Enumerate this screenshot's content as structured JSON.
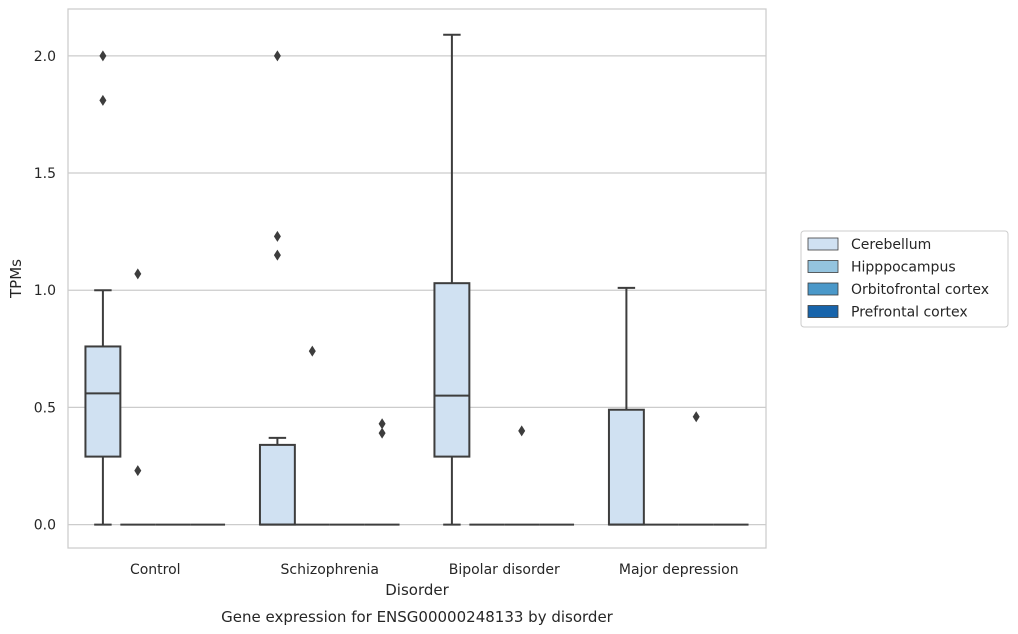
{
  "chart_data": {
    "type": "box",
    "title": "Gene expression for ENSG00000248133 by disorder",
    "xlabel": "Disorder",
    "ylabel": "TPMs",
    "ylim": [
      -0.1,
      2.2
    ],
    "yticks": [
      "0.0",
      "0.5",
      "1.0",
      "1.5",
      "2.0"
    ],
    "grid": "y",
    "legend_position": "right",
    "categories": [
      "Control",
      "Schizophrenia",
      "Bipolar disorder",
      "Major depression"
    ],
    "series": [
      {
        "name": "Cerebellum",
        "color": "#d0e1f2",
        "boxes": [
          {
            "q1": 0.29,
            "median": 0.56,
            "q3": 0.76,
            "whisker_low": 0.0,
            "whisker_high": 1.0,
            "outliers": [
              1.81,
              2.0
            ]
          },
          {
            "q1": 0.0,
            "median": 0.0,
            "q3": 0.34,
            "whisker_low": 0.0,
            "whisker_high": 0.37,
            "outliers": [
              1.15,
              1.23,
              2.0
            ]
          },
          {
            "q1": 0.29,
            "median": 0.55,
            "q3": 1.03,
            "whisker_low": 0.0,
            "whisker_high": 2.09,
            "outliers": []
          },
          {
            "q1": 0.0,
            "median": 0.0,
            "q3": 0.49,
            "whisker_low": 0.0,
            "whisker_high": 1.01,
            "outliers": []
          }
        ]
      },
      {
        "name": "Hipppocampus",
        "color": "#94c4df",
        "boxes": [
          {
            "q1": 0.0,
            "median": 0.0,
            "q3": 0.0,
            "whisker_low": 0.0,
            "whisker_high": 0.0,
            "outliers": [
              0.23,
              1.07
            ]
          },
          {
            "q1": 0.0,
            "median": 0.0,
            "q3": 0.0,
            "whisker_low": 0.0,
            "whisker_high": 0.0,
            "outliers": [
              0.74
            ]
          },
          {
            "q1": 0.0,
            "median": 0.0,
            "q3": 0.0,
            "whisker_low": 0.0,
            "whisker_high": 0.0,
            "outliers": []
          },
          {
            "q1": 0.0,
            "median": 0.0,
            "q3": 0.0,
            "whisker_low": 0.0,
            "whisker_high": 0.0,
            "outliers": []
          }
        ]
      },
      {
        "name": "Orbitofrontal cortex",
        "color": "#4a98c9",
        "boxes": [
          {
            "q1": 0.0,
            "median": 0.0,
            "q3": 0.0,
            "whisker_low": 0.0,
            "whisker_high": 0.0,
            "outliers": []
          },
          {
            "q1": 0.0,
            "median": 0.0,
            "q3": 0.0,
            "whisker_low": 0.0,
            "whisker_high": 0.0,
            "outliers": []
          },
          {
            "q1": 0.0,
            "median": 0.0,
            "q3": 0.0,
            "whisker_low": 0.0,
            "whisker_high": 0.0,
            "outliers": [
              0.4
            ]
          },
          {
            "q1": 0.0,
            "median": 0.0,
            "q3": 0.0,
            "whisker_low": 0.0,
            "whisker_high": 0.0,
            "outliers": [
              0.46
            ]
          }
        ]
      },
      {
        "name": "Prefrontal cortex",
        "color": "#1764ab",
        "boxes": [
          {
            "q1": 0.0,
            "median": 0.0,
            "q3": 0.0,
            "whisker_low": 0.0,
            "whisker_high": 0.0,
            "outliers": []
          },
          {
            "q1": 0.0,
            "median": 0.0,
            "q3": 0.0,
            "whisker_low": 0.0,
            "whisker_high": 0.0,
            "outliers": [
              0.39,
              0.43
            ]
          },
          {
            "q1": 0.0,
            "median": 0.0,
            "q3": 0.0,
            "whisker_low": 0.0,
            "whisker_high": 0.0,
            "outliers": []
          },
          {
            "q1": 0.0,
            "median": 0.0,
            "q3": 0.0,
            "whisker_low": 0.0,
            "whisker_high": 0.0,
            "outliers": []
          }
        ]
      }
    ]
  }
}
